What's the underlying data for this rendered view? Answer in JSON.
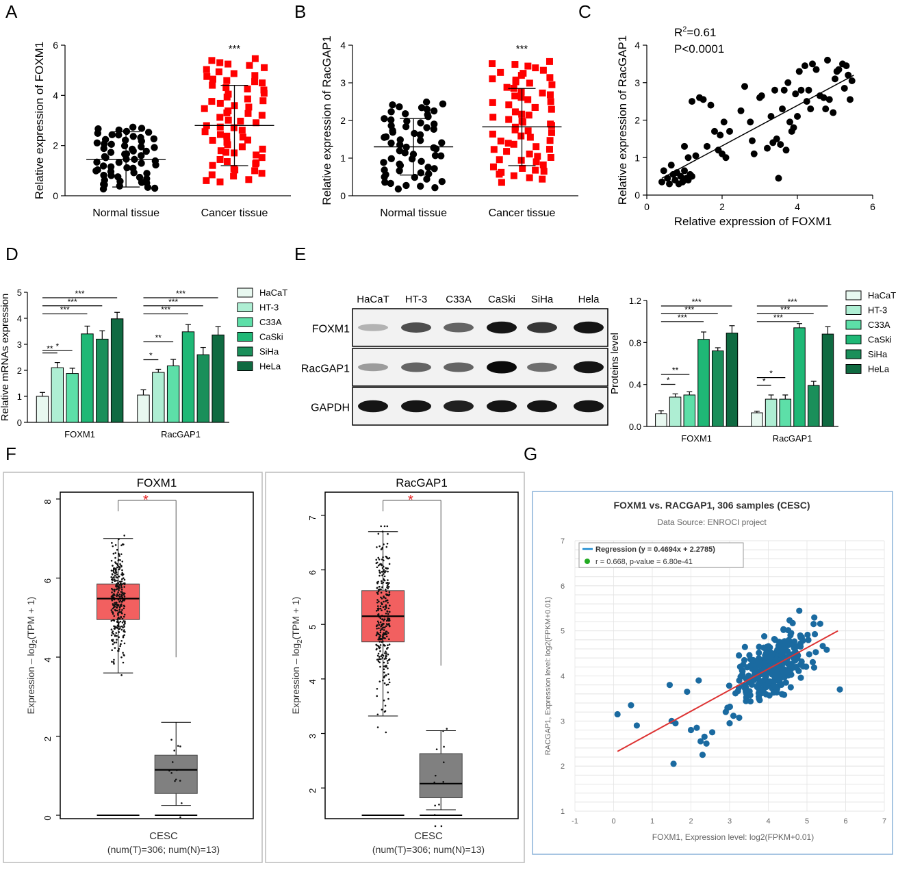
{
  "panel_letters": [
    "A",
    "B",
    "C",
    "D",
    "E",
    "F",
    "G"
  ],
  "chart_data": [
    {
      "id": "A",
      "type": "scatter",
      "title": "",
      "xlabel": "",
      "ylabel": "Relative expression of  FOXM1",
      "ylim": [
        0,
        6
      ],
      "yticks": [
        0,
        2,
        4,
        6
      ],
      "categories": [
        "Normal tissue",
        "Cancer tissue"
      ],
      "series": [
        {
          "category": "Normal tissue",
          "mean": 1.45,
          "sd_low": 0.35,
          "sd_high": 2.55,
          "color": "#000000"
        },
        {
          "category": "Cancer tissue",
          "mean": 2.8,
          "sd_low": 1.2,
          "sd_high": 4.4,
          "color": "#ff0000"
        }
      ],
      "annotations": [
        "***"
      ]
    },
    {
      "id": "B",
      "type": "scatter",
      "title": "",
      "xlabel": "",
      "ylabel": "Relative expression of  RacGAP1",
      "ylim": [
        0,
        4
      ],
      "yticks": [
        0,
        1,
        2,
        3,
        4
      ],
      "categories": [
        "Normal tissue",
        "Cancer tissue"
      ],
      "series": [
        {
          "category": "Normal tissue",
          "mean": 1.3,
          "sd_low": 0.55,
          "sd_high": 2.05,
          "color": "#000000"
        },
        {
          "category": "Cancer tissue",
          "mean": 1.83,
          "sd_low": 0.8,
          "sd_high": 2.85,
          "color": "#ff0000"
        }
      ],
      "annotations": [
        "***"
      ]
    },
    {
      "id": "C",
      "type": "scatter",
      "xlabel": "Relative expression of  FOXM1",
      "ylabel": "Relative expression of  RacGAP1",
      "xlim": [
        0,
        6
      ],
      "ylim": [
        0,
        4
      ],
      "xticks": [
        0,
        2,
        4,
        6
      ],
      "yticks": [
        0,
        1,
        2,
        3,
        4
      ],
      "stat_r2_prefix": "R",
      "stat_r2_sup": "2",
      "stat_r2_value": "=0.61",
      "stat_p": "P<0.0001",
      "fit": {
        "x0": 0.4,
        "y0": 0.45,
        "x1": 5.5,
        "y1": 3.2
      },
      "points": [
        [
          0.4,
          0.35
        ],
        [
          0.45,
          0.65
        ],
        [
          0.55,
          0.45
        ],
        [
          0.6,
          0.3
        ],
        [
          0.65,
          0.8
        ],
        [
          0.7,
          0.55
        ],
        [
          0.75,
          0.4
        ],
        [
          0.8,
          0.6
        ],
        [
          0.85,
          0.3
        ],
        [
          0.9,
          0.5
        ],
        [
          0.95,
          0.35
        ],
        [
          1.0,
          0.65
        ],
        [
          1.05,
          0.45
        ],
        [
          1.1,
          0.4
        ],
        [
          1.15,
          0.55
        ],
        [
          1.2,
          0.5
        ],
        [
          1.0,
          1.3
        ],
        [
          1.1,
          1.0
        ],
        [
          1.2,
          2.5
        ],
        [
          1.3,
          1.05
        ],
        [
          1.4,
          2.6
        ],
        [
          1.5,
          2.55
        ],
        [
          1.6,
          1.3
        ],
        [
          1.7,
          2.4
        ],
        [
          1.8,
          1.7
        ],
        [
          1.9,
          1.2
        ],
        [
          1.95,
          1.6
        ],
        [
          2.0,
          1.1
        ],
        [
          2.05,
          1.95
        ],
        [
          2.1,
          1.0
        ],
        [
          2.2,
          1.7
        ],
        [
          2.5,
          2.25
        ],
        [
          2.6,
          2.9
        ],
        [
          2.75,
          1.95
        ],
        [
          2.8,
          1.45
        ],
        [
          2.85,
          1.1
        ],
        [
          3.0,
          2.6
        ],
        [
          3.05,
          2.65
        ],
        [
          3.2,
          1.25
        ],
        [
          3.3,
          2.1
        ],
        [
          3.35,
          1.4
        ],
        [
          3.4,
          2.8
        ],
        [
          3.45,
          1.5
        ],
        [
          3.5,
          0.45
        ],
        [
          3.55,
          1.35
        ],
        [
          3.6,
          2.3
        ],
        [
          3.65,
          2.8
        ],
        [
          3.7,
          1.2
        ],
        [
          3.75,
          3.0
        ],
        [
          3.8,
          1.95
        ],
        [
          3.85,
          1.7
        ],
        [
          3.9,
          1.8
        ],
        [
          3.95,
          2.7
        ],
        [
          4.0,
          2.1
        ],
        [
          4.05,
          3.3
        ],
        [
          4.1,
          2.8
        ],
        [
          4.2,
          3.45
        ],
        [
          4.25,
          2.5
        ],
        [
          4.3,
          2.8
        ],
        [
          4.35,
          2.3
        ],
        [
          4.4,
          3.5
        ],
        [
          4.5,
          3.35
        ],
        [
          4.6,
          2.65
        ],
        [
          4.7,
          2.6
        ],
        [
          4.75,
          2.3
        ],
        [
          4.8,
          3.6
        ],
        [
          4.85,
          2.55
        ],
        [
          4.95,
          2.2
        ],
        [
          5.0,
          3.1
        ],
        [
          5.05,
          3.3
        ],
        [
          5.1,
          3.35
        ],
        [
          5.2,
          3.5
        ],
        [
          5.25,
          2.85
        ],
        [
          5.3,
          3.45
        ],
        [
          5.35,
          3.2
        ],
        [
          5.4,
          2.55
        ],
        [
          5.45,
          3.05
        ]
      ]
    },
    {
      "id": "D",
      "type": "bar",
      "ylabel": "Relative mRNAs expression",
      "ylim": [
        0,
        5
      ],
      "yticks": [
        0,
        1,
        2,
        3,
        4,
        5
      ],
      "categories": [
        "FOXM1",
        "RacGAP1"
      ],
      "legend": [
        "HaCaT",
        "HT-3",
        "C33A",
        "CaSki",
        "SiHa",
        "HeLa"
      ],
      "colors": [
        "#e8f8f0",
        "#aeeed3",
        "#5ddfa8",
        "#1fb876",
        "#1a8f5a",
        "#0f6a41"
      ],
      "values": [
        [
          1.0,
          2.1,
          1.88,
          3.4,
          3.2,
          3.98
        ],
        [
          1.05,
          1.92,
          2.17,
          3.48,
          2.6,
          3.36
        ]
      ],
      "errors": [
        [
          0.15,
          0.2,
          0.2,
          0.3,
          0.32,
          0.25
        ],
        [
          0.2,
          0.12,
          0.25,
          0.28,
          0.28,
          0.32
        ]
      ],
      "sig": [
        [
          "***",
          "***",
          "***",
          "*",
          "**"
        ],
        [
          "***",
          "***",
          "***",
          "**",
          "*"
        ]
      ]
    },
    {
      "id": "E_blot",
      "type": "table",
      "lanes": [
        "HaCaT",
        "HT-3",
        "C33A",
        "CaSki",
        "SiHa",
        "Hela"
      ],
      "rows": [
        "FOXM1",
        "RacGAP1",
        "GAPDH"
      ],
      "intensity": [
        [
          0.25,
          0.7,
          0.6,
          0.95,
          0.8,
          0.95
        ],
        [
          0.35,
          0.6,
          0.6,
          1.0,
          0.55,
          0.95
        ],
        [
          0.95,
          0.95,
          0.9,
          0.95,
          0.95,
          0.95
        ]
      ]
    },
    {
      "id": "E",
      "type": "bar",
      "ylabel": "Proteins level",
      "ylim": [
        0,
        1.2
      ],
      "yticks": [
        0.0,
        0.4,
        0.8,
        1.2
      ],
      "ytick_labels": [
        "0.0",
        "0.4",
        "0.8",
        "1.2"
      ],
      "categories": [
        "FOXM1",
        "RacGAP1"
      ],
      "legend": [
        "HaCaT",
        "HT-3",
        "C33A",
        "CaSki",
        "SiHa",
        "HeLa"
      ],
      "colors": [
        "#e8f8f0",
        "#aeeed3",
        "#5ddfa8",
        "#1fb876",
        "#1a8f5a",
        "#0f6a41"
      ],
      "values": [
        [
          0.12,
          0.28,
          0.3,
          0.83,
          0.72,
          0.89
        ],
        [
          0.13,
          0.26,
          0.26,
          0.94,
          0.39,
          0.88
        ]
      ],
      "errors": [
        [
          0.03,
          0.03,
          0.03,
          0.07,
          0.03,
          0.07
        ],
        [
          0.015,
          0.04,
          0.04,
          0.04,
          0.04,
          0.07
        ]
      ],
      "sig": [
        [
          "***",
          "***",
          "***",
          "**",
          "*"
        ],
        [
          "***",
          "***",
          "***",
          "*",
          "*"
        ]
      ]
    },
    {
      "id": "F1",
      "type": "box",
      "title": "FOXM1",
      "ylabel_prefix": "Expression – log",
      "ylabel_sub": "2",
      "ylabel_suffix": "(TPM + 1)",
      "ylim": [
        0,
        8
      ],
      "yticks": [
        0,
        2,
        4,
        6,
        8
      ],
      "xlabel": "CESC",
      "note": "(num(T)=306; num(N)=13)",
      "boxes": [
        {
          "name": "T",
          "q1": 4.95,
          "median": 5.48,
          "q3": 5.85,
          "low": 3.6,
          "high": 7.0,
          "color": "#f26060"
        },
        {
          "name": "N",
          "q1": 0.55,
          "median": 1.15,
          "q3": 1.52,
          "low": 0.25,
          "high": 2.35,
          "color": "#808080"
        }
      ],
      "sig": "*"
    },
    {
      "id": "F2",
      "type": "box",
      "title": "RacGAP1",
      "ylabel_prefix": "Expression – log",
      "ylabel_sub": "2",
      "ylabel_suffix": "(TPM + 1)",
      "ylim": [
        1.5,
        7.3
      ],
      "yticks": [
        2,
        3,
        4,
        5,
        6,
        7
      ],
      "xlabel": "CESC",
      "note": "(num(T)=306; num(N)=13)",
      "boxes": [
        {
          "name": "T",
          "q1": 4.68,
          "median": 5.15,
          "q3": 5.62,
          "low": 3.32,
          "high": 6.7,
          "color": "#f26060"
        },
        {
          "name": "N",
          "q1": 1.82,
          "median": 2.08,
          "q3": 2.63,
          "low": 1.6,
          "high": 3.05,
          "color": "#808080"
        }
      ],
      "sig": "*"
    },
    {
      "id": "G",
      "type": "scatter",
      "title": "FOXM1 vs. RACGAP1, 306 samples (CESC)",
      "subtitle": "Data Source: ENROCI project",
      "xlabel": "FOXM1, Expression level: log2(FPKM+0.01)",
      "ylabel": "RACGAP1, Expression level: log2(FPKM+0.01)",
      "xlim": [
        -1,
        7
      ],
      "ylim": [
        1,
        7
      ],
      "xticks": [
        -1,
        0,
        1,
        2,
        3,
        4,
        5,
        6,
        7
      ],
      "yticks": [
        1,
        2,
        3,
        4,
        5,
        6,
        7
      ],
      "legend_regression": "Regression (y = 0.4694x + 2.2785)",
      "legend_stat": "r = 0.668, p-value = 6.80e-41",
      "slope": 0.4694,
      "intercept": 2.2785,
      "fit_x": [
        0.1,
        5.8
      ],
      "n_points": 306,
      "outliers": [
        [
          0.1,
          3.15
        ],
        [
          0.45,
          3.35
        ],
        [
          0.6,
          2.9
        ],
        [
          1.45,
          3.8
        ],
        [
          1.5,
          3.0
        ],
        [
          1.55,
          2.05
        ],
        [
          1.6,
          2.95
        ],
        [
          1.9,
          3.65
        ],
        [
          2.0,
          2.8
        ],
        [
          2.15,
          2.85
        ],
        [
          2.2,
          3.9
        ],
        [
          2.25,
          2.55
        ],
        [
          2.3,
          2.25
        ],
        [
          2.35,
          2.65
        ],
        [
          2.4,
          2.5
        ],
        [
          2.55,
          2.75
        ],
        [
          2.9,
          3.2
        ],
        [
          3.0,
          2.95
        ],
        [
          5.85,
          3.7
        ]
      ],
      "point_color": "#1a6aa0",
      "line_color": "#dd3333"
    }
  ]
}
